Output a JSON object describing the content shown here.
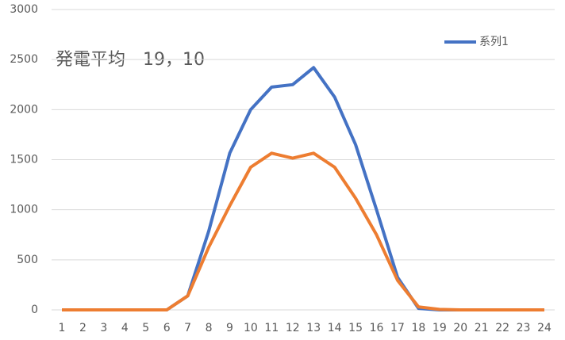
{
  "chart_data": {
    "type": "line",
    "title": "発電平均　19，10",
    "categories": [
      "1",
      "2",
      "3",
      "4",
      "5",
      "6",
      "7",
      "8",
      "9",
      "10",
      "11",
      "12",
      "13",
      "14",
      "15",
      "16",
      "17",
      "18",
      "19",
      "20",
      "21",
      "22",
      "23",
      "24"
    ],
    "series": [
      {
        "name": "系列1",
        "color": "#4472c4",
        "values": [
          0,
          0,
          0,
          0,
          0,
          0,
          140,
          785,
          1565,
          2000,
          2225,
          2250,
          2420,
          2125,
          1650,
          1000,
          325,
          15,
          0,
          0,
          0,
          0,
          0,
          0
        ]
      },
      {
        "color": "#ed7d31",
        "values": [
          0,
          0,
          0,
          0,
          0,
          0,
          140,
          625,
          1040,
          1425,
          1565,
          1515,
          1565,
          1425,
          1115,
          750,
          295,
          30,
          5,
          0,
          0,
          0,
          0,
          0
        ]
      }
    ],
    "ylim": [
      0,
      3000
    ],
    "yticks": [
      0,
      500,
      1000,
      1500,
      2000,
      2500,
      3000
    ],
    "grid": true,
    "legend": "top-right"
  }
}
